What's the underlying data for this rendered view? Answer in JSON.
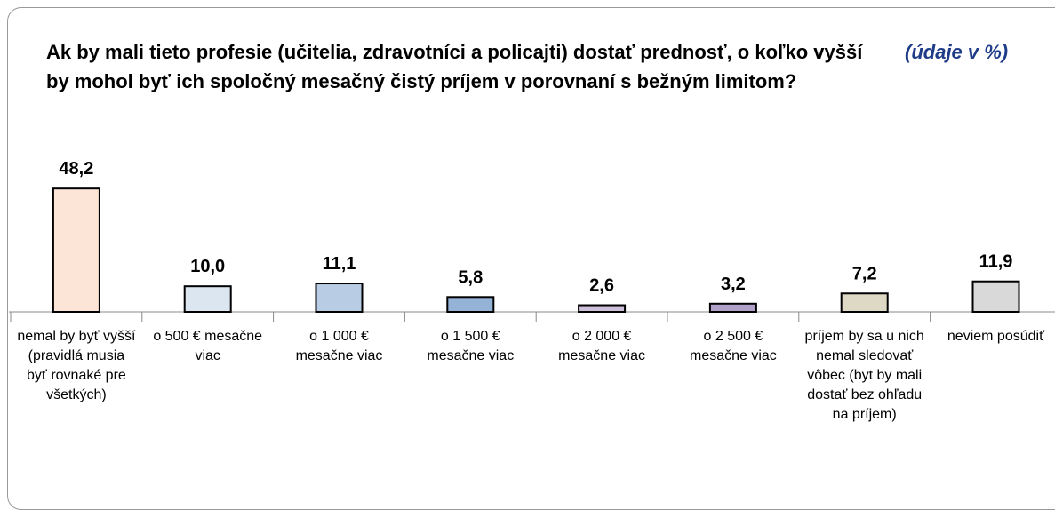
{
  "chart_data": {
    "type": "bar",
    "title": "Ak by mali tieto profesie (učitelia, zdravotníci a policajti) dostať prednosť, o koľko vyšší by mohol byť ich spoločný mesačný čistý príjem v porovnaní s bežným limitom?",
    "annotation": "(údaje v %)",
    "categories": [
      "nemal by byť vyšší (pravidlá musia byť rovnaké pre všetkých)",
      "o 500 € mesačne viac",
      "o 1 000 € mesačne viac",
      "o 1 500 € mesačne viac",
      "o 2 000 € mesačne viac",
      "o 2 500 € mesačne viac",
      "príjem by sa u nich nemal sledovať vôbec (byt by mali dostať bez ohľadu na príjem)",
      "neviem posúdiť"
    ],
    "values": [
      48.2,
      10.0,
      11.1,
      5.8,
      2.6,
      3.2,
      7.2,
      11.9
    ],
    "value_labels": [
      "48,2",
      "10,0",
      "11,1",
      "5,8",
      "2,6",
      "3,2",
      "7,2",
      "11,9"
    ],
    "colors": [
      "#fce4d6",
      "#dce6f1",
      "#b8cce4",
      "#95b3d7",
      "#ccc0da",
      "#b1a0c7",
      "#ddd9c4",
      "#d9d9d9"
    ],
    "ylim": [
      0,
      50
    ]
  }
}
